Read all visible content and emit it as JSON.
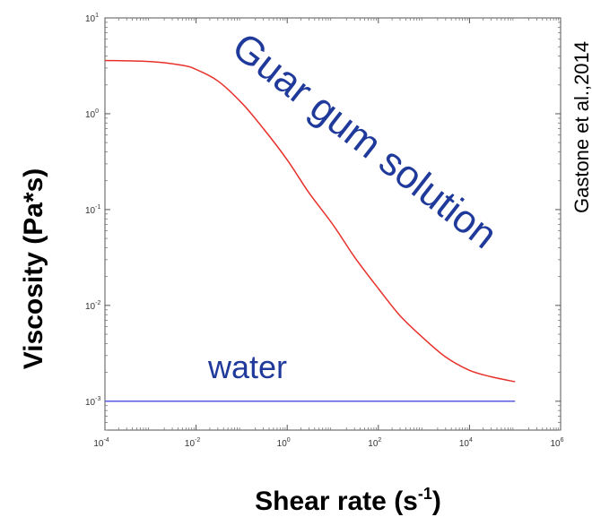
{
  "chart_data": {
    "type": "line",
    "xlabel_main": "Shear rate (s",
    "xlabel_sup": "-1",
    "xlabel_end": ")",
    "ylabel": "Viscosity (Pa*s)",
    "citation": "Gastone et al.,2014",
    "x_log": true,
    "y_log": true,
    "xlim": [
      0.0001,
      1000000
    ],
    "ylim": [
      0.0005,
      10
    ],
    "grid": false,
    "x_ticks": [
      {
        "base": "10",
        "exp": "-4",
        "value": 0.0001
      },
      {
        "base": "10",
        "exp": "-2",
        "value": 0.01
      },
      {
        "base": "10",
        "exp": "0",
        "value": 1
      },
      {
        "base": "10",
        "exp": "2",
        "value": 100
      },
      {
        "base": "10",
        "exp": "4",
        "value": 10000
      },
      {
        "base": "10",
        "exp": "6",
        "value": 1000000
      }
    ],
    "y_ticks": [
      {
        "base": "10",
        "exp": "1",
        "value": 10
      },
      {
        "base": "10",
        "exp": "0",
        "value": 1
      },
      {
        "base": "10",
        "exp": "-1",
        "value": 0.1
      },
      {
        "base": "10",
        "exp": "-2",
        "value": 0.01
      },
      {
        "base": "10",
        "exp": "-3",
        "value": 0.001
      }
    ],
    "series": [
      {
        "name": "Guar gum solution",
        "color": "#e8302a",
        "x": [
          0.0001,
          0.001,
          0.005,
          0.01,
          0.03,
          0.1,
          0.3,
          1,
          3,
          10,
          30,
          100,
          300,
          1000,
          3000,
          10000,
          30000,
          100000
        ],
        "y": [
          3.6,
          3.5,
          3.2,
          2.9,
          2.2,
          1.3,
          0.7,
          0.33,
          0.15,
          0.07,
          0.032,
          0.015,
          0.0078,
          0.0045,
          0.0029,
          0.0021,
          0.0018,
          0.0016
        ]
      },
      {
        "name": "water",
        "color": "#5a5ae0",
        "x": [
          0.0001,
          100000
        ],
        "y": [
          0.001,
          0.001
        ]
      }
    ]
  }
}
